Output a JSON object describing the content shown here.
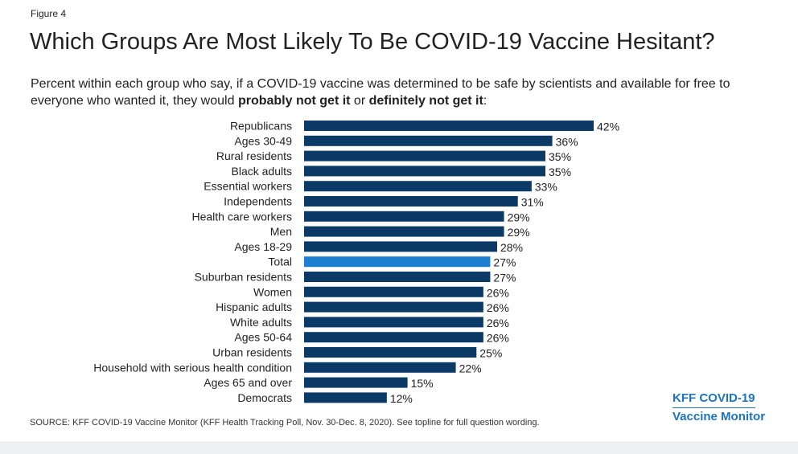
{
  "figure_label": "Figure 4",
  "title": "Which Groups Are Most Likely To Be COVID-19 Vaccine Hesitant?",
  "subtitle": {
    "part1": "Percent within each group who say, if a COVID-19 vaccine was determined to be safe by scientists and available for free to everyone who wanted it, they would ",
    "bold1": "probably not get it",
    "part2": " or ",
    "bold2": "definitely not get it",
    "part3": ":"
  },
  "source": "SOURCE: KFF COVID-19 Vaccine Monitor (KFF Health Tracking Poll, Nov. 30-Dec. 8, 2020). See topline for full question wording.",
  "brand": {
    "line1": "KFF COVID-19",
    "line2": "Vaccine Monitor"
  },
  "colors": {
    "bar": "#0c3a67",
    "highlight": "#1e7fd0"
  },
  "chart_data": {
    "type": "bar",
    "orientation": "horizontal",
    "title": "Which Groups Are Most Likely To Be COVID-19 Vaccine Hesitant?",
    "categories": [
      "Republicans",
      "Ages 30-49",
      "Rural residents",
      "Black adults",
      "Essential workers",
      "Independents",
      "Health care workers",
      "Men",
      "Ages 18-29",
      "Total",
      "Suburban residents",
      "Women",
      "Hispanic adults",
      "White adults",
      "Ages 50-64",
      "Urban residents",
      "Household with serious health condition",
      "Ages 65 and over",
      "Democrats"
    ],
    "values": [
      42,
      36,
      35,
      35,
      33,
      31,
      29,
      29,
      28,
      27,
      27,
      26,
      26,
      26,
      26,
      25,
      22,
      15,
      12
    ],
    "labels": [
      "42%",
      "36%",
      "35%",
      "35%",
      "33%",
      "31%",
      "29%",
      "29%",
      "28%",
      "27%",
      "27%",
      "26%",
      "26%",
      "26%",
      "26%",
      "25%",
      "22%",
      "15%",
      "12%"
    ],
    "highlight_category": "Total",
    "unit": "%",
    "xlim": [
      0,
      42
    ],
    "grid": false
  }
}
